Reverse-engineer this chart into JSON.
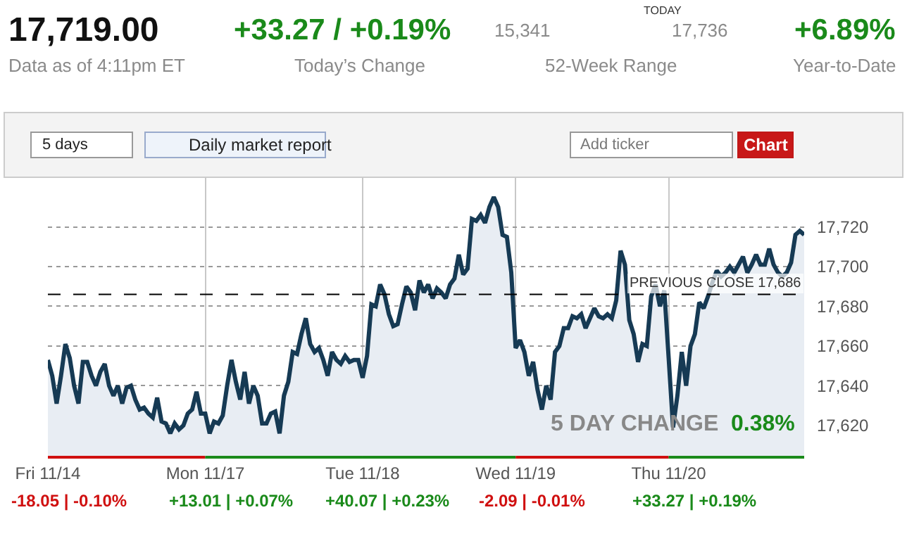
{
  "chart_data": {
    "type": "area",
    "categories": [
      "Fri 11/14",
      null,
      null,
      null,
      null,
      null,
      null,
      null,
      null,
      null,
      null,
      null,
      null,
      null,
      null,
      null,
      null,
      null,
      null,
      null,
      null,
      null,
      null,
      null,
      null,
      null,
      null,
      null,
      null,
      null,
      null,
      null,
      null,
      null,
      null,
      null,
      "Mon 11/17",
      null,
      null,
      null,
      null,
      null,
      null,
      null,
      null,
      null,
      null,
      null,
      null,
      null,
      null,
      null,
      null,
      null,
      null,
      null,
      null,
      null,
      null,
      null,
      null,
      null,
      null,
      null,
      null,
      null,
      null,
      null,
      null,
      null,
      null,
      null,
      "Tue 11/18",
      null,
      null,
      null,
      null,
      null,
      null,
      null,
      null,
      null,
      null,
      null,
      null,
      null,
      null,
      null,
      null,
      null,
      null,
      null,
      null,
      null,
      null,
      null,
      null,
      null,
      null,
      null,
      null,
      null,
      null,
      null,
      null,
      null,
      null,
      "Wed 11/19",
      null,
      null,
      null,
      null,
      null,
      null,
      null,
      null,
      null,
      null,
      null,
      null,
      null,
      null,
      null,
      null,
      null,
      null,
      null,
      null,
      null,
      null,
      null,
      null,
      null,
      null,
      null,
      null,
      null,
      null,
      null,
      null,
      null,
      null,
      "Thu 11/20",
      null,
      null,
      null,
      null,
      null,
      null,
      null,
      null,
      null,
      null,
      null,
      null,
      null,
      null,
      null,
      null,
      null,
      null,
      null,
      null,
      null,
      null,
      null,
      null,
      null,
      null,
      null,
      null,
      null,
      null,
      null
    ],
    "series": [
      {
        "color": "#163a54",
        "values": [
          17653,
          17645,
          17631,
          17645,
          17661,
          17654,
          17640,
          17631,
          17652,
          17652,
          17645,
          17640,
          17647,
          17651,
          17640,
          17635,
          17640,
          17631,
          17639,
          17640,
          17633,
          17628,
          17629,
          17626,
          17624,
          17634,
          17622,
          17621,
          17616,
          17621,
          17618,
          17620,
          17626,
          17628,
          17637,
          17626,
          17626,
          17616,
          17622,
          17621,
          17625,
          17640,
          17653,
          17642,
          17633,
          17647,
          17631,
          17640,
          17635,
          17621,
          17621,
          17626,
          17627,
          17616,
          17635,
          17642,
          17657,
          17656,
          17666,
          17674,
          17661,
          17657,
          17659,
          17653,
          17645,
          17657,
          17653,
          17651,
          17655,
          17652,
          17653,
          17653,
          17644,
          17655,
          17681,
          17680,
          17691,
          17686,
          17676,
          17670,
          17671,
          17681,
          17690,
          17687,
          17678,
          17693,
          17687,
          17691,
          17684,
          17689,
          17687,
          17684,
          17691,
          17694,
          17706,
          17696,
          17699,
          17724,
          17723,
          17726,
          17722,
          17730,
          17735,
          17730,
          17716,
          17715,
          17697,
          17659,
          17663,
          17657,
          17645,
          17652,
          17638,
          17628,
          17640,
          17633,
          17657,
          17660,
          17669,
          17669,
          17675,
          17674,
          17676,
          17669,
          17674,
          17679,
          17675,
          17674,
          17676,
          17674,
          17683,
          17708,
          17701,
          17673,
          17666,
          17652,
          17661,
          17660,
          17685,
          17691,
          17680,
          17688,
          17654,
          17619,
          17635,
          17657,
          17640,
          17660,
          17666,
          17682,
          17679,
          17685,
          17692,
          17698,
          17695,
          17697,
          17700,
          17697,
          17701,
          17705,
          17697,
          17701,
          17706,
          17701,
          17701,
          17709,
          17701,
          17697,
          17695,
          17697,
          17702,
          17716,
          17718,
          17716
        ]
      }
    ],
    "ylim": [
      17604,
      17745
    ],
    "yticks": [
      {
        "value": 17620,
        "label": "17,620"
      },
      {
        "value": 17640,
        "label": "17,640"
      },
      {
        "value": 17660,
        "label": "17,660"
      },
      {
        "value": 17680,
        "label": "17,680"
      },
      {
        "value": 17700,
        "label": "17,700"
      },
      {
        "value": 17720,
        "label": "17,720"
      }
    ],
    "grid": true,
    "ref_lines": [
      {
        "axis": "y",
        "value": 17686,
        "label": "PREVIOUS CLOSE 17,686",
        "color": "#000000",
        "line_style": "dashed"
      }
    ],
    "annotations": [
      "17,719.00",
      "Data as of 4:11pm ET",
      "+33.27 / +0.19%",
      "Today’s Change",
      "15,341",
      "17,736",
      "TODAY",
      "52-Week Range",
      "+6.89%",
      "Year-to-Date",
      "5 days",
      "Daily market report",
      "Add ticker",
      "Chart",
      "5 DAY CHANGE",
      "0.38%",
      "-18.05 | -0.10%",
      "+13.01 | +0.07%",
      "+40.07 | +0.23%",
      "-2.09 | -0.01%",
      "+33.27 | +0.19%"
    ]
  }
}
